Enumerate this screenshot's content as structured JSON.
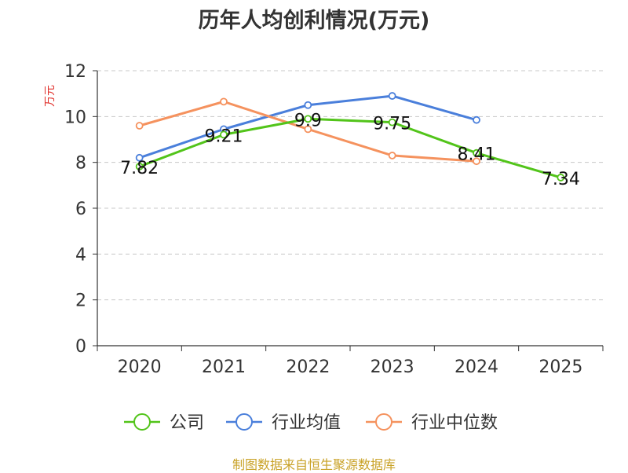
{
  "chart_data": {
    "type": "line",
    "title": "历年人均创利情况(万元)",
    "ylabel": "万元",
    "xlabel": "",
    "categories": [
      "2020",
      "2021",
      "2022",
      "2023",
      "2024",
      "2025"
    ],
    "ylim": [
      0,
      12
    ],
    "yticks": [
      0,
      2,
      4,
      6,
      8,
      10,
      12
    ],
    "grid": true,
    "legend_position": "bottom",
    "series": [
      {
        "name": "公司",
        "color": "#52c41a",
        "values": [
          7.82,
          9.21,
          9.9,
          9.75,
          8.41,
          7.34
        ],
        "labels": [
          "7.82",
          "9.21",
          "9.9",
          "9.75",
          "8.41",
          "7.34"
        ]
      },
      {
        "name": "行业均值",
        "color": "#4a7fdb",
        "values": [
          8.2,
          9.45,
          10.5,
          10.9,
          9.85,
          null
        ]
      },
      {
        "name": "行业中位数",
        "color": "#f5925e",
        "values": [
          9.6,
          10.65,
          9.45,
          8.3,
          8.05,
          null
        ]
      }
    ]
  },
  "footer": {
    "source": "制图数据来自恒生聚源数据库"
  }
}
